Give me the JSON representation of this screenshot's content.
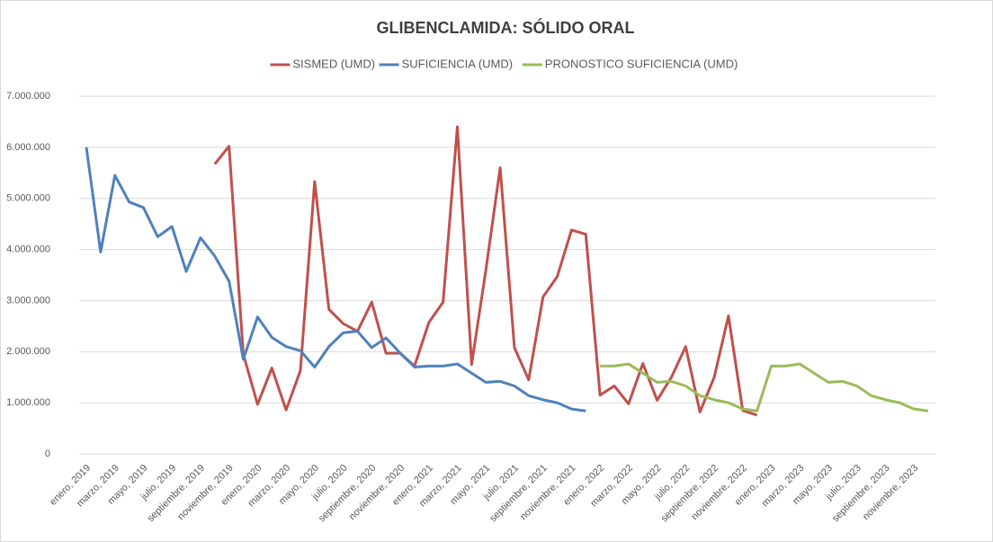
{
  "chart_data": {
    "type": "line",
    "title": "GLIBENCLAMIDA: SÓLIDO ORAL",
    "categories": [
      "enero, 2019",
      null,
      "marzo, 2019",
      null,
      "mayo, 2019",
      null,
      "julio, 2019",
      null,
      "septiembre, 2019",
      null,
      "noviembre, 2019",
      null,
      "enero, 2020",
      null,
      "marzo, 2020",
      null,
      "mayo, 2020",
      null,
      "julio, 2020",
      null,
      "septiembre, 2020",
      null,
      "noviembre, 2020",
      null,
      "enero, 2021",
      null,
      "marzo, 2021",
      null,
      "mayo, 2021",
      null,
      "julio, 2021",
      null,
      "septiembre, 2021",
      null,
      "noviembre, 2021",
      null,
      "enero, 2022",
      null,
      "marzo, 2022",
      null,
      "mayo, 2022",
      null,
      "julio, 2022",
      null,
      "septiembre, 2022",
      null,
      "noviembre, 2022",
      null,
      "enero, 2023",
      null,
      "marzo, 2023",
      null,
      "mayo, 2023",
      null,
      "julio, 2023",
      null,
      "septiembre, 2023",
      null,
      "noviembre, 2023",
      null
    ],
    "series": [
      {
        "name": "SISMED (UMD)",
        "color": "#c0504d",
        "values": [
          null,
          null,
          null,
          null,
          null,
          null,
          null,
          null,
          null,
          5670000,
          6020000,
          1950000,
          970000,
          1680000,
          860000,
          1630000,
          5330000,
          2830000,
          2550000,
          2400000,
          2970000,
          1970000,
          1970000,
          1720000,
          2570000,
          2970000,
          6400000,
          1750000,
          3600000,
          5600000,
          2080000,
          1450000,
          3070000,
          3470000,
          4380000,
          4300000,
          1150000,
          1330000,
          980000,
          1770000,
          1050000,
          1500000,
          2100000,
          820000,
          1500000,
          2700000,
          850000,
          760000,
          null,
          null,
          null,
          null,
          null,
          null,
          null,
          null,
          null,
          null,
          null,
          null
        ]
      },
      {
        "name": "SUFICIENCIA (UMD)",
        "color": "#4f81bd",
        "values": [
          6000000,
          3950000,
          5450000,
          4930000,
          4820000,
          4250000,
          4450000,
          3570000,
          4230000,
          3870000,
          3380000,
          1850000,
          2680000,
          2280000,
          2100000,
          2020000,
          1700000,
          2100000,
          2370000,
          2400000,
          2080000,
          2270000,
          1970000,
          1700000,
          1720000,
          1720000,
          1760000,
          1580000,
          1400000,
          1420000,
          1330000,
          1140000,
          1060000,
          1000000,
          880000,
          840000,
          null,
          null,
          null,
          null,
          null,
          null,
          null,
          null,
          null,
          null,
          null,
          null,
          null,
          null,
          null,
          null,
          null,
          null,
          null,
          null,
          null,
          null,
          null,
          null
        ]
      },
      {
        "name": "PRONOSTICO SUFICIENCIA (UMD)",
        "color": "#9bbb59",
        "values": [
          null,
          null,
          null,
          null,
          null,
          null,
          null,
          null,
          null,
          null,
          null,
          null,
          null,
          null,
          null,
          null,
          null,
          null,
          null,
          null,
          null,
          null,
          null,
          null,
          null,
          null,
          null,
          null,
          null,
          null,
          null,
          null,
          null,
          null,
          null,
          null,
          1720000,
          1720000,
          1760000,
          1580000,
          1400000,
          1420000,
          1330000,
          1140000,
          1060000,
          1000000,
          880000,
          840000,
          1720000,
          1720000,
          1760000,
          1580000,
          1400000,
          1420000,
          1330000,
          1140000,
          1060000,
          1000000,
          880000,
          840000
        ]
      }
    ],
    "ylim": [
      0,
      7000000
    ],
    "yticks": [
      0,
      {
        "value": 1000000,
        "label": "1.000.000"
      },
      {
        "value": 2000000,
        "label": "2.000.000"
      },
      {
        "value": 3000000,
        "label": "3.000.000"
      },
      {
        "value": 4000000,
        "label": "4.000.000"
      },
      {
        "value": 5000000,
        "label": "5.000.000"
      },
      {
        "value": 6000000,
        "label": "6.000.000"
      },
      {
        "value": 7000000,
        "label": "7.000.000"
      }
    ],
    "grid": true,
    "legend": "top"
  }
}
